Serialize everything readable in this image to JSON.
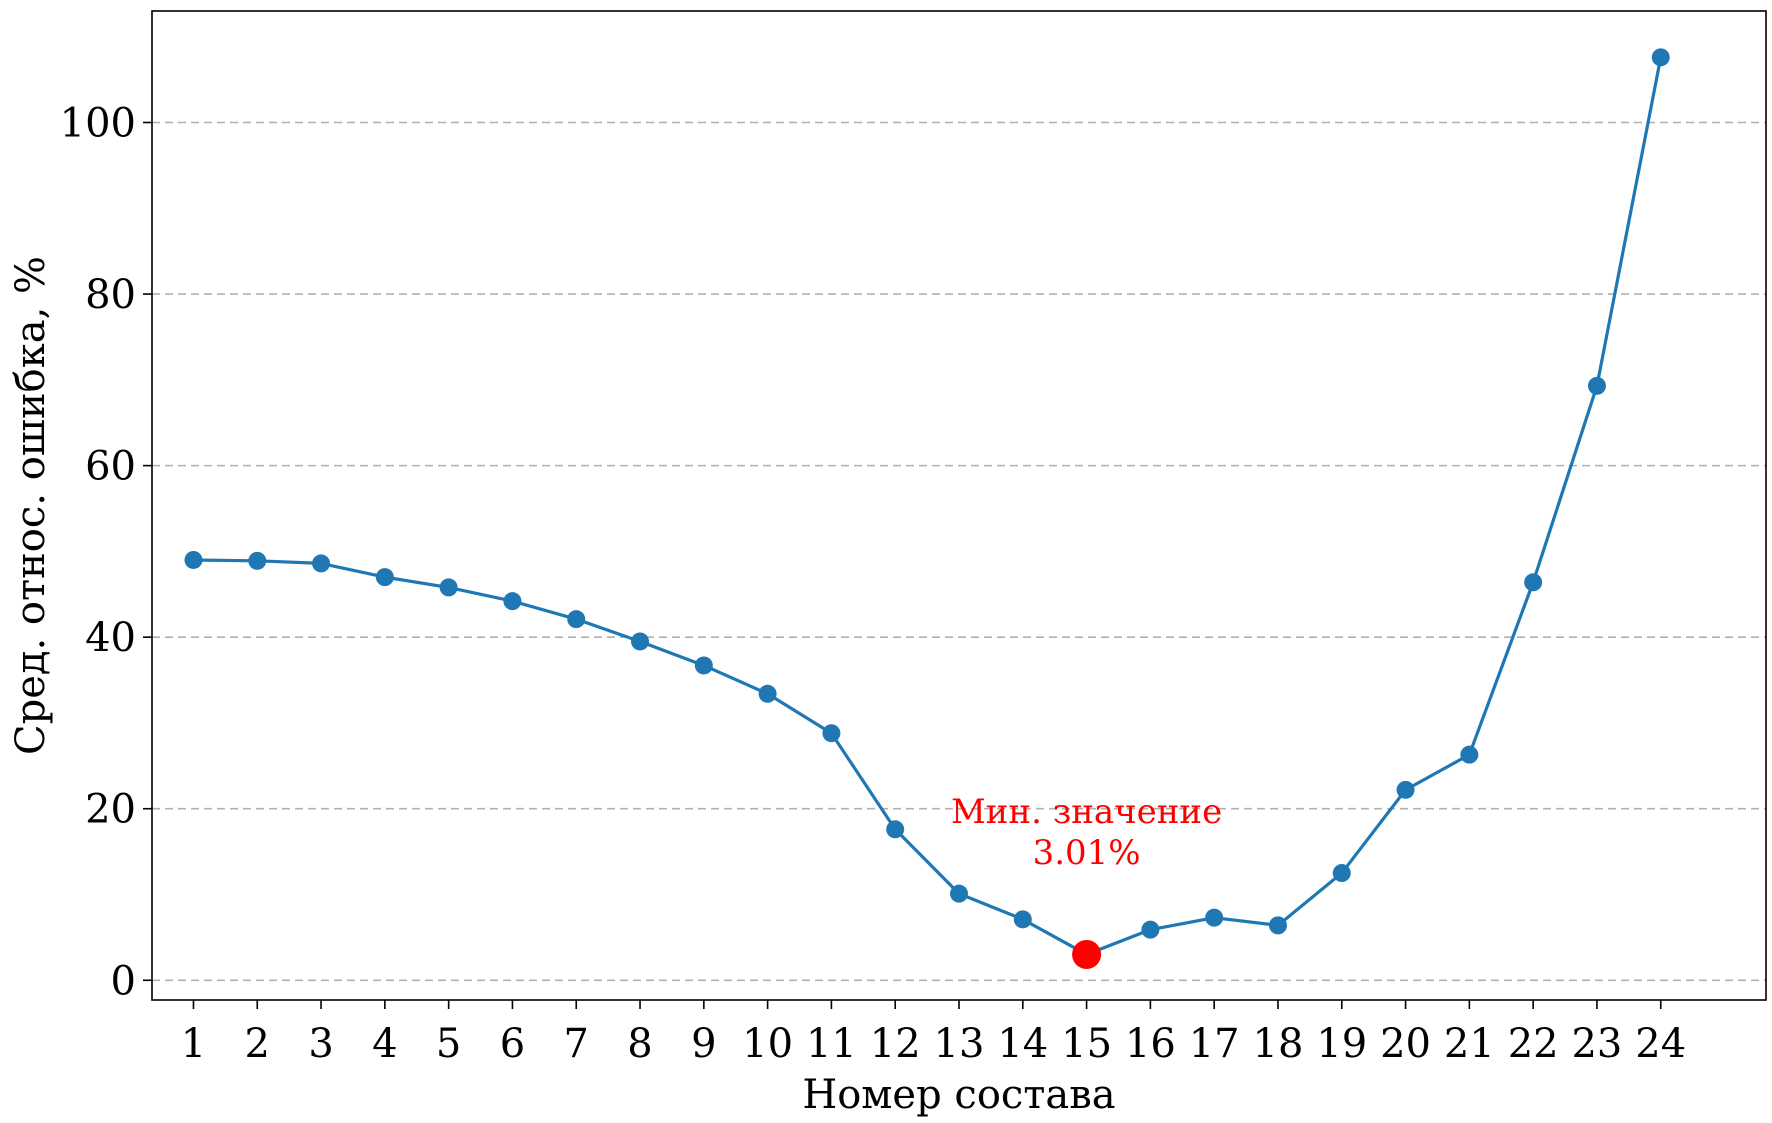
{
  "chart_data": {
    "type": "line",
    "xlabel": "Номер состава",
    "ylabel": "Сред. относ. ошибка, %",
    "x": [
      1,
      2,
      3,
      4,
      5,
      6,
      7,
      8,
      9,
      10,
      11,
      12,
      13,
      14,
      15,
      16,
      17,
      18,
      19,
      20,
      21,
      22,
      23,
      24
    ],
    "x_ticks": [
      "1",
      "2",
      "3",
      "4",
      "5",
      "6",
      "7",
      "8",
      "9",
      "10",
      "11",
      "12",
      "13",
      "14",
      "15",
      "16",
      "17",
      "18",
      "19",
      "20",
      "21",
      "22",
      "23",
      "24"
    ],
    "series": [
      {
        "color": "#1f77b4",
        "values": [
          49.0,
          48.9,
          48.6,
          47.0,
          45.8,
          44.2,
          42.1,
          39.5,
          36.7,
          33.4,
          28.8,
          17.6,
          10.1,
          7.1,
          3.01,
          5.9,
          7.3,
          6.4,
          12.5,
          22.2,
          26.3,
          46.4,
          69.3,
          107.6
        ]
      }
    ],
    "y_ticks": [
      0,
      20,
      40,
      60,
      80,
      100
    ],
    "ylim": [
      -2.3,
      113
    ],
    "xlim": [
      0.35,
      25.65
    ],
    "grid": "y-dashed",
    "highlight": {
      "x": 15,
      "y": 3.01,
      "color": "#ff0000",
      "label_line1": "Мин. значение",
      "label_line2": "3.01%"
    }
  }
}
